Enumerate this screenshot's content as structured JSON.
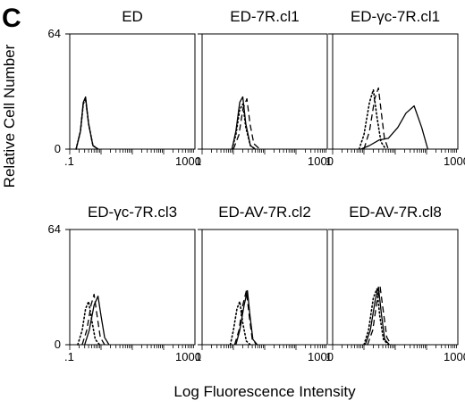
{
  "figure": {
    "panel_letter": "C",
    "y_axis_label": "Relative Cell Number",
    "x_axis_label": "Log Fluorescence Intensity"
  },
  "chart_data": {
    "type": "line",
    "x_scale": "log",
    "xlim": [
      0.1,
      1000
    ],
    "ylim": [
      0,
      64
    ],
    "x_tick_labels": [
      ".1",
      "1000",
      "1",
      "1000",
      "1",
      "1000"
    ],
    "y_tick_labels": [
      "64",
      "0"
    ],
    "line_styles": [
      "dotted",
      "dashed",
      "solid"
    ],
    "panels": [
      {
        "title": "ED",
        "series": [
          {
            "style": "dotted",
            "x": [
              0.16,
              0.22,
              0.27,
              0.32,
              0.4,
              0.55,
              0.8
            ],
            "y": [
              0,
              10,
              25,
              28,
              14,
              2,
              0
            ]
          },
          {
            "style": "dashed",
            "x": [
              0.16,
              0.22,
              0.27,
              0.32,
              0.4,
              0.55,
              0.8
            ],
            "y": [
              0,
              10,
              25,
              28,
              14,
              2,
              0
            ]
          },
          {
            "style": "solid",
            "x": [
              0.16,
              0.22,
              0.27,
              0.32,
              0.4,
              0.55,
              0.8
            ],
            "y": [
              0,
              10,
              26,
              29,
              14,
              2,
              0
            ]
          }
        ]
      },
      {
        "title": "ED-7R.cl1",
        "series": [
          {
            "style": "dotted",
            "x": [
              0.9,
              1.2,
              1.6,
              2.0,
              2.5,
              3.5,
              5
            ],
            "y": [
              0,
              8,
              22,
              25,
              12,
              2,
              0
            ]
          },
          {
            "style": "dashed",
            "x": [
              1.0,
              1.5,
              2.0,
              2.7,
              3.4,
              4.5,
              7
            ],
            "y": [
              0,
              8,
              22,
              28,
              14,
              3,
              0
            ]
          },
          {
            "style": "solid",
            "x": [
              0.9,
              1.2,
              1.6,
              2.0,
              2.5,
              3.5,
              5
            ],
            "y": [
              0,
              10,
              26,
              29,
              14,
              2,
              0
            ]
          }
        ]
      },
      {
        "title": "ED-γc-7R.cl1",
        "series": [
          {
            "style": "dotted",
            "x": [
              0.7,
              1.0,
              1.5,
              2.0,
              2.6,
              3.5,
              5
            ],
            "y": [
              0,
              8,
              26,
              33,
              18,
              4,
              0
            ]
          },
          {
            "style": "dashed",
            "x": [
              1.0,
              1.5,
              2.2,
              2.9,
              3.6,
              4.5,
              6
            ],
            "y": [
              0,
              10,
              28,
              34,
              20,
              6,
              0
            ]
          },
          {
            "style": "solid",
            "x": [
              0.8,
              1.5,
              3.0,
              6.0,
              12.0,
              22.0,
              40.0,
              70.0,
              110.0
            ],
            "y": [
              0,
              2,
              5,
              6,
              12,
              20,
              24,
              12,
              0
            ]
          }
        ]
      },
      {
        "title": "ED-γc-7R.cl3",
        "series": [
          {
            "style": "dotted",
            "x": [
              0.18,
              0.25,
              0.32,
              0.4,
              0.5,
              0.65,
              0.9
            ],
            "y": [
              0,
              8,
              20,
              24,
              14,
              3,
              0
            ]
          },
          {
            "style": "dashed",
            "x": [
              0.25,
              0.35,
              0.48,
              0.6,
              0.75,
              0.95,
              1.3
            ],
            "y": [
              0,
              8,
              22,
              28,
              16,
              4,
              0
            ]
          },
          {
            "style": "solid",
            "x": [
              0.3,
              0.42,
              0.6,
              0.8,
              1.0,
              1.3,
              1.8
            ],
            "y": [
              0,
              8,
              22,
              27,
              16,
              4,
              0
            ]
          }
        ]
      },
      {
        "title": "ED-AV-7R.cl2",
        "series": [
          {
            "style": "dotted",
            "x": [
              0.8,
              1.0,
              1.3,
              1.6,
              2.0,
              2.6,
              3.5
            ],
            "y": [
              0,
              8,
              20,
              24,
              12,
              2,
              0
            ]
          },
          {
            "style": "dashed",
            "x": [
              1.1,
              1.5,
              2.0,
              2.6,
              3.2,
              4.0,
              5.5
            ],
            "y": [
              0,
              8,
              22,
              30,
              16,
              3,
              0
            ]
          },
          {
            "style": "solid",
            "x": [
              1.2,
              1.6,
              2.2,
              2.8,
              3.4,
              4.2,
              5.8
            ],
            "y": [
              0,
              8,
              22,
              30,
              16,
              3,
              0
            ]
          }
        ]
      },
      {
        "title": "ED-AV-7R.cl8",
        "series": [
          {
            "style": "dotted",
            "x": [
              1.0,
              1.4,
              2.0,
              2.6,
              3.2,
              4.2,
              6.0
            ],
            "y": [
              0,
              8,
              26,
              31,
              16,
              3,
              0
            ]
          },
          {
            "style": "dashed",
            "x": [
              1.3,
              1.9,
              2.6,
              3.3,
              4.2,
              5.4,
              7.5
            ],
            "y": [
              0,
              8,
              24,
              32,
              18,
              4,
              0
            ]
          },
          {
            "style": "solid",
            "x": [
              1.1,
              1.6,
              2.3,
              2.9,
              3.6,
              4.6,
              6.5
            ],
            "y": [
              0,
              8,
              25,
              32,
              17,
              3,
              0
            ]
          }
        ]
      }
    ]
  }
}
